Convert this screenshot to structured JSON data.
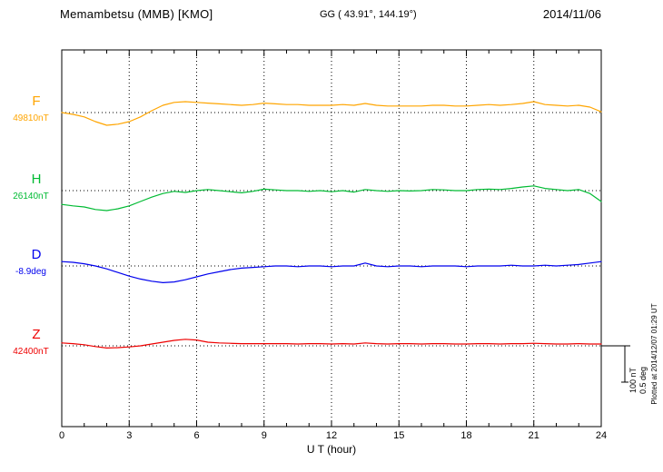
{
  "header": {
    "station": "Memambetsu (MMB)  [KMO]",
    "gg": "GG ( 43.91°, 144.19°)",
    "date": "2014/11/06"
  },
  "side_note": "Plotted at 2014/12/07 01:29 UT",
  "scale_bar": {
    "labels": [
      "100 nT",
      "0.5 deg"
    ]
  },
  "chart_data": {
    "type": "line",
    "title": "Memambetsu (MMB) [KMO] magnetogram 2014/11/06",
    "xlabel": "U T (hour)",
    "ylabel": "",
    "x_range": [
      0,
      24
    ],
    "x_ticks": [
      0,
      3,
      6,
      9,
      12,
      15,
      18,
      21,
      24
    ],
    "x_step_hours": 0.5,
    "grid": "dotted vertical lines every 3 hours; dotted horizontal baseline per channel",
    "scale": {
      "bar_nT": 100,
      "bar_deg": 0.5
    },
    "series": [
      {
        "name": "F",
        "baseline_label": "49810nT",
        "baseline_value": 49810,
        "unit": "nT",
        "color": "#FFA500",
        "deviations": [
          0,
          -5,
          -12,
          -25,
          -35,
          -32,
          -25,
          -12,
          5,
          20,
          28,
          30,
          28,
          26,
          24,
          22,
          20,
          22,
          26,
          24,
          22,
          22,
          20,
          20,
          20,
          22,
          20,
          25,
          20,
          18,
          18,
          18,
          18,
          20,
          20,
          18,
          18,
          20,
          22,
          20,
          22,
          25,
          30,
          22,
          20,
          18,
          20,
          15,
          2
        ]
      },
      {
        "name": "H",
        "baseline_label": "26140nT",
        "baseline_value": 26140,
        "unit": "nT",
        "color": "#00BB33",
        "deviations": [
          -38,
          -42,
          -45,
          -52,
          -55,
          -50,
          -42,
          -30,
          -18,
          -8,
          -2,
          -5,
          0,
          3,
          0,
          -3,
          -6,
          -2,
          4,
          2,
          0,
          0,
          -2,
          0,
          -3,
          0,
          -4,
          3,
          0,
          -2,
          0,
          -1,
          0,
          3,
          2,
          0,
          0,
          3,
          4,
          3,
          6,
          10,
          13,
          6,
          3,
          0,
          3,
          -8,
          -30
        ]
      },
      {
        "name": "D",
        "baseline_label": "-8.9deg",
        "baseline_value": -8.9,
        "unit": "deg",
        "color": "#0000EE",
        "deviations": [
          0.06,
          0.05,
          0.03,
          0,
          -0.04,
          -0.09,
          -0.14,
          -0.18,
          -0.21,
          -0.23,
          -0.22,
          -0.19,
          -0.15,
          -0.11,
          -0.08,
          -0.05,
          -0.03,
          -0.02,
          -0.01,
          0,
          0,
          -0.01,
          0,
          0,
          -0.01,
          0,
          0,
          0.04,
          0,
          -0.01,
          0,
          0,
          -0.01,
          0,
          0,
          0,
          -0.01,
          0,
          0,
          0,
          0.01,
          0,
          0,
          0.01,
          0,
          0.01,
          0.02,
          0.04,
          0.06
        ]
      },
      {
        "name": "Z",
        "baseline_label": "42400nT",
        "baseline_value": 42400,
        "unit": "nT",
        "color": "#EE0000",
        "deviations": [
          8,
          6,
          3,
          -2,
          -6,
          -5,
          -3,
          0,
          5,
          10,
          15,
          18,
          16,
          10,
          8,
          7,
          6,
          6,
          6,
          6,
          6,
          5,
          6,
          6,
          5,
          6,
          5,
          8,
          6,
          5,
          6,
          6,
          5,
          6,
          6,
          5,
          5,
          6,
          6,
          5,
          6,
          6,
          7,
          6,
          5,
          5,
          6,
          5,
          5
        ]
      }
    ]
  }
}
